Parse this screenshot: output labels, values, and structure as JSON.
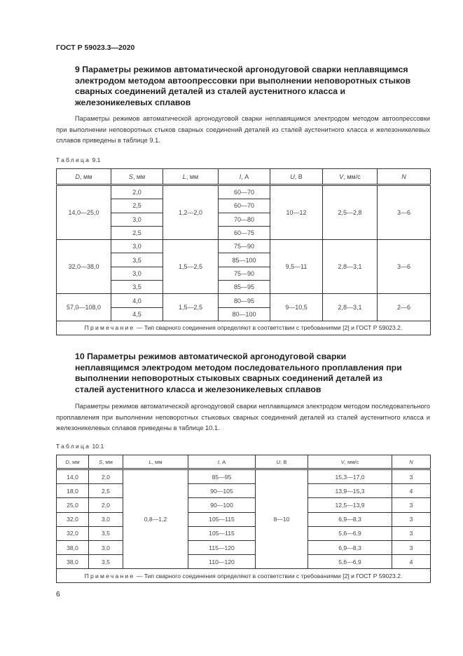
{
  "header": {
    "doc_code": "ГОСТ Р 59023.3—2020"
  },
  "section9": {
    "title": "9 Параметры режимов автоматической аргонодуговой сварки неплавящимся электродом методом автоопрессовки при выполнении неповоротных стыков сварных соединений деталей из сталей аустенитного класса и железоникелевых сплавов",
    "paragraph": "Параметры режимов автоматической аргонодуговой сварки неплавящимся электродом методом автоопрессовки при выполнении неповоротных стыков сварных соединений деталей из сталей аустенитного класса и железоникелевых сплавов приведены в таблице 9.1.",
    "table_caption_word": "Таблица",
    "table_caption_num": "9.1",
    "table": {
      "columns": [
        [
          "D",
          ", мм"
        ],
        [
          "S",
          ", мм"
        ],
        [
          "L",
          ", мм"
        ],
        [
          "I",
          ", А"
        ],
        [
          "U",
          ", В"
        ],
        [
          "V",
          ", мм/с"
        ],
        [
          "N",
          ""
        ]
      ],
      "groups": [
        {
          "D": "14,0—25,0",
          "L": "1,2—2,0",
          "U": "10—12",
          "V": "2,5—2,8",
          "N": "3—6",
          "rows": [
            [
              "2,0",
              "60—70"
            ],
            [
              "2,5",
              "60—70"
            ],
            [
              "3,0",
              "70—80"
            ],
            [
              "2,5",
              "60—75"
            ]
          ]
        },
        {
          "D": "32,0—38,0",
          "L": "1,5—2,5",
          "U": "9,5—11",
          "V": "2,8—3,1",
          "N": "3—6",
          "rows": [
            [
              "3,0",
              "75—90"
            ],
            [
              "3,5",
              "85—100"
            ],
            [
              "3,0",
              "75—90"
            ],
            [
              "3,5",
              "85—95"
            ]
          ]
        },
        {
          "D": "57,0—108,0",
          "L": "1,5—2,5",
          "U": "9—10,5",
          "V": "2,8—3,1",
          "N": "2—6",
          "rows": [
            [
              "4,0",
              "80—95"
            ],
            [
              "4,5",
              "80—100"
            ]
          ]
        }
      ],
      "note_label": "Примечание",
      "note_text": " — Тип сварного соединения определяют в соответствии с требованиями [2] и ГОСТ Р 59023.2."
    }
  },
  "section10": {
    "title": "10 Параметры режимов автоматической аргонодуговой сварки неплавящимся электродом методом последовательного проплавления при выполнении неповоротных стыковых сварных соединений деталей из сталей аустенитного класса и железоникелевых сплавов",
    "paragraph": "Параметры режимов автоматической аргонодуговой сварки неплавящимся электродом методом последовательного проплавления при выполнении неповоротных стыковых сварных соединений деталей из сталей аустенитного класса и железоникелевых сплавов приведены в таблице 10.1.",
    "table_caption_word": "Таблица",
    "table_caption_num": "10.1",
    "table": {
      "columns": [
        [
          "D",
          ", мм"
        ],
        [
          "S",
          ", мм"
        ],
        [
          "L",
          ", мм"
        ],
        [
          "I",
          ", А"
        ],
        [
          "U",
          ", В"
        ],
        [
          "V",
          ", мм/с"
        ],
        [
          "N",
          ""
        ]
      ],
      "L": "0,8—1,2",
      "U": "8—10",
      "rows": [
        {
          "D": "14,0",
          "S": "2,0",
          "I": "85—95",
          "V": "15,3—17,0",
          "N": "3"
        },
        {
          "D": "18,0",
          "S": "2,5",
          "I": "90—105",
          "V": "13,9—15,3",
          "N": "4"
        },
        {
          "D": "25,0",
          "S": "2,0",
          "I": "90—100",
          "V": "12,5—13,9",
          "N": "3"
        },
        {
          "D": "32,0",
          "S": "3,0",
          "I": "105—115",
          "V": "6,9—8,3",
          "N": "3"
        },
        {
          "D": "32,0",
          "S": "3,5",
          "I": "105—115",
          "V": "5,6—6,9",
          "N": "3"
        },
        {
          "D": "38,0",
          "S": "3,0",
          "I": "115—120",
          "V": "6,9—8,3",
          "N": "3"
        },
        {
          "D": "38,0",
          "S": "3,5",
          "I": "110—120",
          "V": "5,6—6,9",
          "N": "4"
        }
      ],
      "note_label": "Примечание",
      "note_text": " — Тип сварного соединения определяют в соответствии с требованиями [2] и ГОСТ Р 59023.2."
    }
  },
  "footer": {
    "page_number": "6"
  }
}
